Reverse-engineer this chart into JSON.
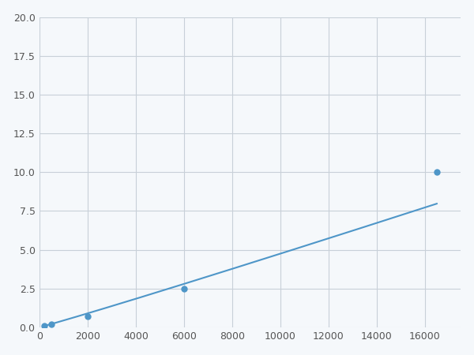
{
  "x": [
    200,
    500,
    2000,
    6000,
    16500
  ],
  "y": [
    0.1,
    0.2,
    0.7,
    2.5,
    10.0
  ],
  "line_color": "#4e96c8",
  "marker_color": "#4e96c8",
  "marker_size": 5,
  "line_width": 1.5,
  "xlim": [
    0,
    17500
  ],
  "ylim": [
    0,
    20.0
  ],
  "xticks": [
    0,
    2000,
    4000,
    6000,
    8000,
    10000,
    12000,
    14000,
    16000
  ],
  "yticks": [
    0.0,
    2.5,
    5.0,
    7.5,
    10.0,
    12.5,
    15.0,
    17.5,
    20.0
  ],
  "grid_color": "#c8d0d8",
  "background_color": "#f5f8fb",
  "figure_facecolor": "#f5f8fb"
}
